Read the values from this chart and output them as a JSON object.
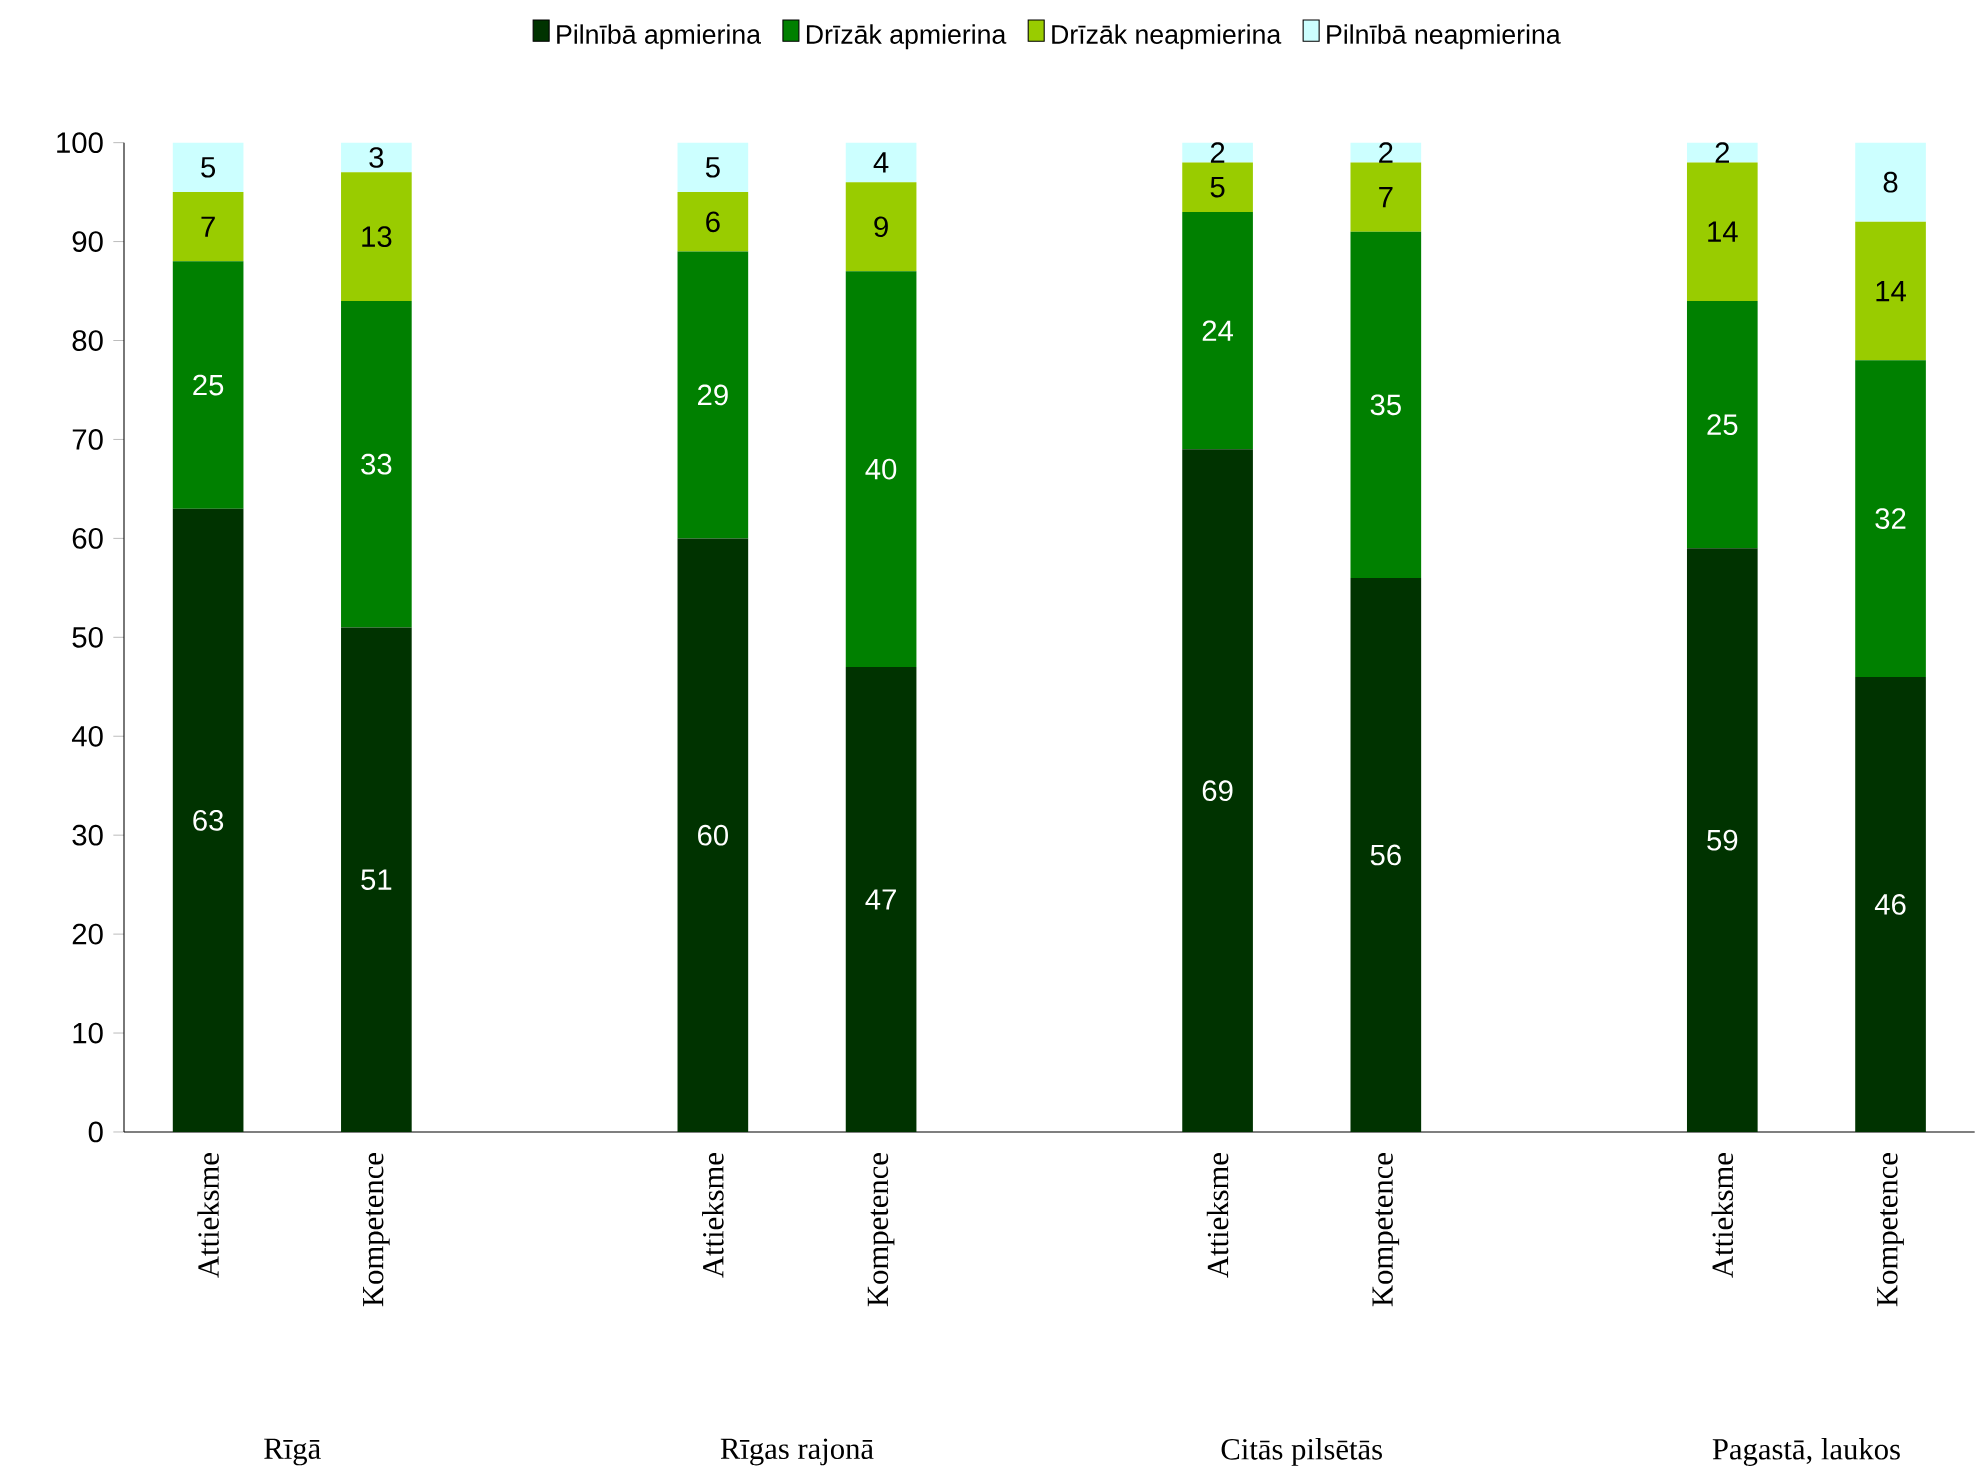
{
  "chart_data": {
    "type": "bar",
    "stacked": true,
    "categories": [
      "Attieksme",
      "Kompetence",
      null,
      "Attieksme",
      "Kompetence",
      null,
      "Attieksme",
      "Kompetence",
      null,
      "Attieksme",
      "Kompetence"
    ],
    "series": [
      {
        "name": "Pilnībā apmierina",
        "color": "#003300",
        "values": [
          63,
          51,
          null,
          60,
          47,
          null,
          69,
          56,
          null,
          59,
          46
        ]
      },
      {
        "name": "Drīzāk apmierina",
        "color": "#008000",
        "values": [
          25,
          33,
          null,
          29,
          40,
          null,
          24,
          35,
          null,
          25,
          32
        ]
      },
      {
        "name": "Drīzāk neapmierina",
        "color": "#99cc00",
        "values": [
          7,
          13,
          null,
          6,
          9,
          null,
          5,
          7,
          null,
          14,
          14
        ]
      },
      {
        "name": "Pilnībā neapmierina",
        "color": "#ccffff",
        "values": [
          5,
          3,
          null,
          5,
          4,
          null,
          2,
          2,
          null,
          2,
          8
        ]
      }
    ],
    "annotations": [
      "Rīgā",
      "Rīgas rajonā",
      "Citās pilsētās",
      "Pagastā, laukos"
    ],
    "ylim": [
      0,
      100
    ],
    "yticks": [
      0,
      10,
      20,
      30,
      40,
      50,
      60,
      70,
      80,
      90,
      100
    ],
    "data_labels": true,
    "legend": "top",
    "grid": false
  }
}
